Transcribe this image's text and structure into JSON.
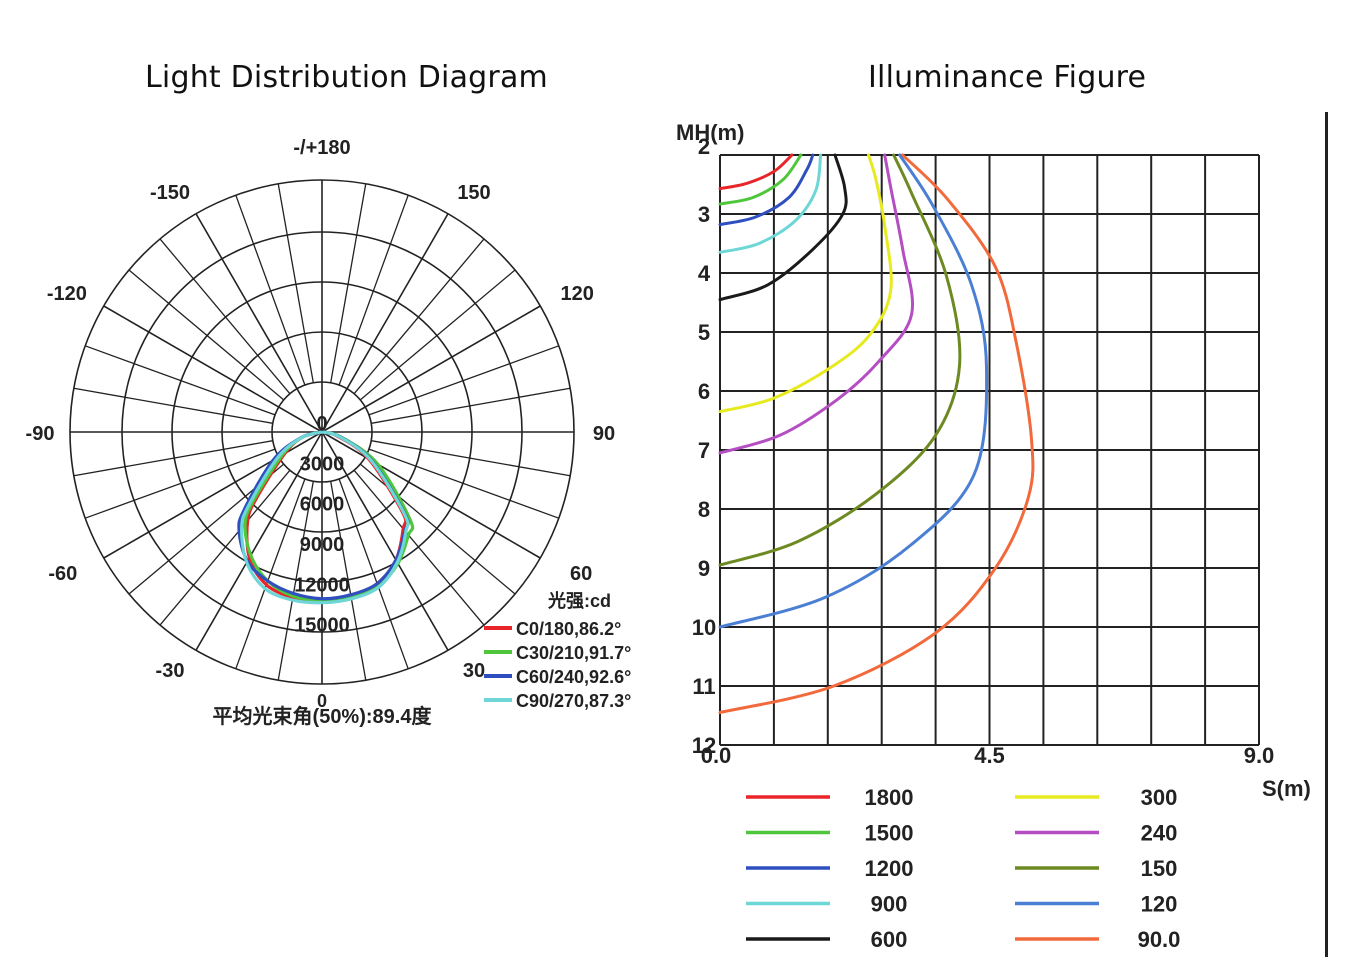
{
  "polar_title": "Light Distribution Diagram",
  "illum_title": "Illuminance Figure",
  "chart_data": [
    {
      "type": "polar",
      "title": "Light Distribution Diagram",
      "angle_labels": [
        "-/+180",
        "150",
        "120",
        "90",
        "60",
        "30",
        "0",
        "-30",
        "-60",
        "-90",
        "-120",
        "-150"
      ],
      "radial_labels": [
        "0",
        "3000",
        "6000",
        "9000",
        "12000",
        "15000"
      ],
      "rmax": 15000,
      "legend_title": "光强:cd",
      "footer": "平均光束角(50%):89.4度",
      "series": [
        {
          "name": "C0/180,86.2°",
          "color": "#e8262a",
          "angles": [
            -90,
            -75,
            -60,
            -45,
            -40,
            -30,
            -20,
            -10,
            0,
            10,
            20,
            30,
            40,
            45,
            60,
            75,
            90
          ],
          "values": [
            0,
            1500,
            3200,
            6800,
            8600,
            10800,
            12100,
            12500,
            12500,
            12500,
            12000,
            11000,
            9400,
            8500,
            4000,
            1200,
            0
          ]
        },
        {
          "name": "C30/210,91.7°",
          "color": "#4fc63b",
          "angles": [
            -90,
            -75,
            -60,
            -45,
            -40,
            -30,
            -20,
            -10,
            0,
            10,
            20,
            30,
            40,
            45,
            60,
            75,
            90
          ],
          "values": [
            0,
            1500,
            3400,
            7200,
            8900,
            10600,
            11800,
            12400,
            12500,
            12400,
            12200,
            11300,
            10000,
            9300,
            4800,
            1500,
            0
          ]
        },
        {
          "name": "C60/240,92.6°",
          "color": "#2f4fbf",
          "angles": [
            -90,
            -75,
            -60,
            -45,
            -40,
            -30,
            -20,
            -10,
            0,
            10,
            20,
            30,
            40,
            45,
            60,
            75,
            90
          ],
          "values": [
            0,
            1600,
            4200,
            8200,
            9600,
            11100,
            11800,
            12200,
            12400,
            12300,
            12000,
            11000,
            9600,
            8800,
            4300,
            1400,
            0
          ]
        },
        {
          "name": "C90/270,87.3°",
          "color": "#6ed6d6",
          "angles": [
            -90,
            -75,
            -60,
            -45,
            -40,
            -30,
            -20,
            -10,
            0,
            10,
            20,
            30,
            40,
            45,
            60,
            75,
            90
          ],
          "values": [
            0,
            1500,
            3800,
            7700,
            9300,
            11200,
            12400,
            12700,
            12700,
            12600,
            12300,
            11200,
            9700,
            8700,
            4200,
            1300,
            0
          ]
        }
      ]
    },
    {
      "type": "line",
      "title": "Illuminance Figure",
      "xlabel": "S(m)",
      "ylabel": "MH(m)",
      "xlim": [
        0,
        9
      ],
      "ylim": [
        2,
        12
      ],
      "x_ticks": [
        "0.0",
        "4.5",
        "9.0"
      ],
      "y_ticks": [
        "2",
        "3",
        "4",
        "5",
        "6",
        "7",
        "8",
        "9",
        "10",
        "11",
        "12"
      ],
      "series": [
        {
          "name": "1800",
          "color": "#e8262a",
          "points": [
            [
              0,
              2.57
            ],
            [
              0.45,
              2.48
            ],
            [
              0.9,
              2.28
            ],
            [
              1.2,
              2.0
            ]
          ]
        },
        {
          "name": "1500",
          "color": "#4fc63b",
          "points": [
            [
              0,
              2.83
            ],
            [
              0.55,
              2.72
            ],
            [
              1.05,
              2.42
            ],
            [
              1.35,
              2.0
            ]
          ]
        },
        {
          "name": "1200",
          "color": "#2f4fbf",
          "points": [
            [
              0,
              3.18
            ],
            [
              0.6,
              3.05
            ],
            [
              1.15,
              2.72
            ],
            [
              1.45,
              2.25
            ],
            [
              1.55,
              2.0
            ]
          ]
        },
        {
          "name": "900",
          "color": "#6ed6d6",
          "points": [
            [
              0,
              3.65
            ],
            [
              0.65,
              3.5
            ],
            [
              1.25,
              3.12
            ],
            [
              1.6,
              2.6
            ],
            [
              1.68,
              2.0
            ]
          ]
        },
        {
          "name": "600",
          "color": "#1a1a1a",
          "points": [
            [
              0,
              4.45
            ],
            [
              0.8,
              4.2
            ],
            [
              1.55,
              3.6
            ],
            [
              2.05,
              3.0
            ],
            [
              2.08,
              2.55
            ],
            [
              1.92,
              2.0
            ]
          ]
        },
        {
          "name": "300",
          "color": "#e6ea1e",
          "points": [
            [
              0,
              6.35
            ],
            [
              0.9,
              6.12
            ],
            [
              1.85,
              5.6
            ],
            [
              2.5,
              5.05
            ],
            [
              2.85,
              4.3
            ],
            [
              2.75,
              3.2
            ],
            [
              2.6,
              2.4
            ],
            [
              2.48,
              2.0
            ]
          ]
        },
        {
          "name": "240",
          "color": "#b44ec2",
          "points": [
            [
              0,
              7.05
            ],
            [
              1.0,
              6.75
            ],
            [
              1.95,
              6.15
            ],
            [
              2.65,
              5.5
            ],
            [
              3.2,
              4.7
            ],
            [
              3.05,
              3.6
            ],
            [
              2.85,
              2.55
            ],
            [
              2.75,
              2.0
            ]
          ]
        },
        {
          "name": "150",
          "color": "#6d8a22",
          "points": [
            [
              0,
              8.95
            ],
            [
              1.3,
              8.55
            ],
            [
              2.6,
              7.75
            ],
            [
              3.6,
              6.75
            ],
            [
              4.0,
              5.55
            ],
            [
              3.78,
              4.05
            ],
            [
              3.2,
              2.65
            ],
            [
              2.9,
              2.0
            ]
          ]
        },
        {
          "name": "120",
          "color": "#4a7fd4",
          "points": [
            [
              0,
              10.0
            ],
            [
              1.75,
              9.5
            ],
            [
              3.2,
              8.6
            ],
            [
              4.25,
              7.4
            ],
            [
              4.45,
              5.6
            ],
            [
              4.2,
              4.2
            ],
            [
              3.55,
              2.85
            ],
            [
              3.0,
              2.0
            ]
          ]
        },
        {
          "name": "90.0",
          "color": "#f26a3c",
          "points": [
            [
              0,
              11.45
            ],
            [
              1.9,
              11.0
            ],
            [
              3.6,
              10.1
            ],
            [
              4.6,
              9.0
            ],
            [
              5.15,
              7.8
            ],
            [
              5.2,
              6.8
            ],
            [
              4.95,
              5.2
            ],
            [
              4.6,
              3.9
            ],
            [
              3.8,
              2.75
            ],
            [
              3.05,
              2.0
            ]
          ]
        }
      ]
    }
  ]
}
